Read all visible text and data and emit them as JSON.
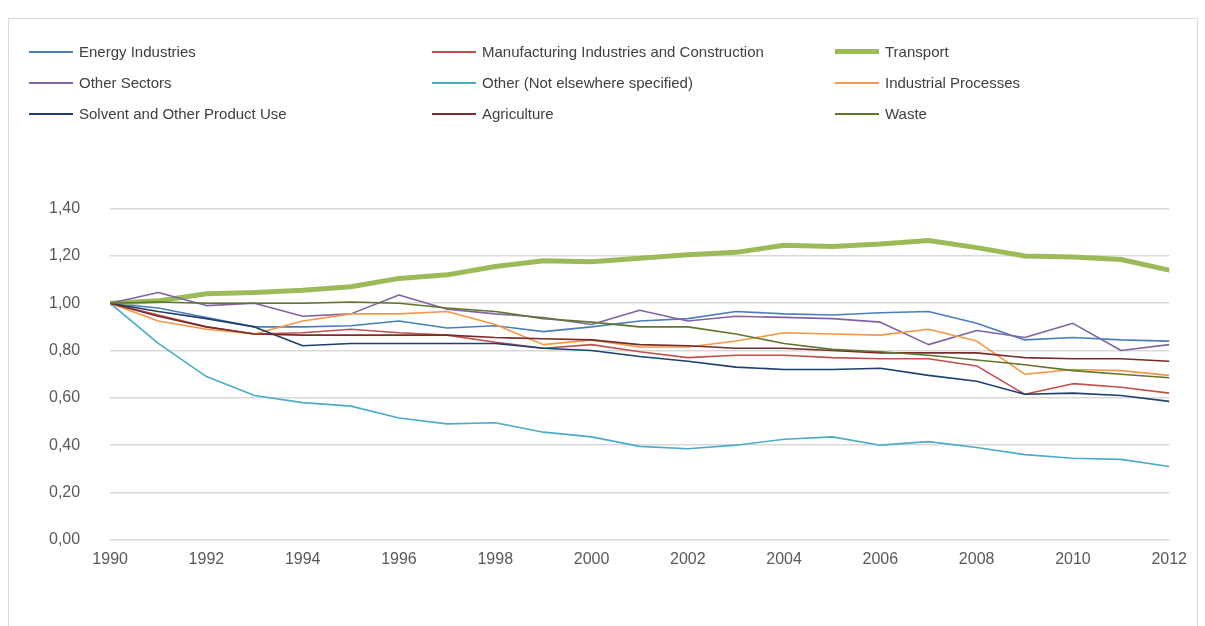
{
  "chart_data": {
    "type": "line",
    "x": [
      1990,
      1991,
      1992,
      1993,
      1994,
      1995,
      1996,
      1997,
      1998,
      1999,
      2000,
      2001,
      2002,
      2003,
      2004,
      2005,
      2006,
      2007,
      2008,
      2009,
      2010,
      2011,
      2012
    ],
    "xlim": [
      1990,
      2012
    ],
    "xticks": [
      1990,
      1992,
      1994,
      1996,
      1998,
      2000,
      2002,
      2004,
      2006,
      2008,
      2010,
      2012
    ],
    "ylim": [
      0,
      1.4
    ],
    "yticks": [
      {
        "value": 0,
        "label": "0,00"
      },
      {
        "value": 0.2,
        "label": "0,20"
      },
      {
        "value": 0.4,
        "label": "0,40"
      },
      {
        "value": 0.6,
        "label": "0,60"
      },
      {
        "value": 0.8,
        "label": "0,80"
      },
      {
        "value": 1.0,
        "label": "1,00"
      },
      {
        "value": 1.2,
        "label": "1,20"
      },
      {
        "value": 1.4,
        "label": "1,40"
      }
    ],
    "grid": "y",
    "legend": "top",
    "marker": "none",
    "line_style": "solid",
    "series": [
      {
        "name": "Energy Industries",
        "color": "#4a7ebb",
        "values": [
          1.0,
          0.98,
          0.94,
          0.9,
          0.9,
          0.905,
          0.925,
          0.895,
          0.905,
          0.88,
          0.9,
          0.925,
          0.935,
          0.965,
          0.955,
          0.95,
          0.96,
          0.965,
          0.915,
          0.845,
          0.855,
          0.845,
          0.84
        ]
      },
      {
        "name": "Manufacturing Industries and Construction",
        "color": "#c0504d",
        "values": [
          1.0,
          0.95,
          0.9,
          0.87,
          0.875,
          0.89,
          0.875,
          0.865,
          0.835,
          0.81,
          0.825,
          0.795,
          0.77,
          0.78,
          0.78,
          0.77,
          0.765,
          0.765,
          0.735,
          0.615,
          0.66,
          0.645,
          0.62
        ]
      },
      {
        "name": "Transport",
        "color": "#9bbb59",
        "values": [
          1.0,
          1.01,
          1.04,
          1.045,
          1.055,
          1.07,
          1.105,
          1.12,
          1.155,
          1.18,
          1.175,
          1.19,
          1.205,
          1.215,
          1.245,
          1.24,
          1.25,
          1.265,
          1.235,
          1.2,
          1.195,
          1.185,
          1.14
        ]
      },
      {
        "name": "Other Sectors",
        "color": "#8064a2",
        "values": [
          1.0,
          1.045,
          0.99,
          1.0,
          0.945,
          0.955,
          1.035,
          0.975,
          0.955,
          0.94,
          0.91,
          0.97,
          0.925,
          0.945,
          0.94,
          0.935,
          0.92,
          0.825,
          0.885,
          0.855,
          0.915,
          0.8,
          0.825
        ]
      },
      {
        "name": "Other (Not elsewhere specified)",
        "color": "#4bacc6",
        "values": [
          1.0,
          0.83,
          0.69,
          0.61,
          0.58,
          0.565,
          0.515,
          0.49,
          0.495,
          0.455,
          0.435,
          0.395,
          0.385,
          0.4,
          0.425,
          0.435,
          0.4,
          0.415,
          0.39,
          0.36,
          0.345,
          0.34,
          0.31
        ]
      },
      {
        "name": "Industrial Processes",
        "color": "#f79646",
        "values": [
          1.0,
          0.925,
          0.89,
          0.87,
          0.925,
          0.955,
          0.955,
          0.965,
          0.91,
          0.825,
          0.845,
          0.815,
          0.815,
          0.84,
          0.875,
          0.87,
          0.865,
          0.89,
          0.84,
          0.7,
          0.72,
          0.715,
          0.695
        ]
      },
      {
        "name": "Solvent and Other Product Use",
        "color": "#1f3f6e",
        "values": [
          1.0,
          0.965,
          0.935,
          0.9,
          0.82,
          0.83,
          0.83,
          0.83,
          0.83,
          0.81,
          0.8,
          0.775,
          0.755,
          0.73,
          0.72,
          0.72,
          0.725,
          0.695,
          0.67,
          0.615,
          0.62,
          0.61,
          0.585
        ]
      },
      {
        "name": "Agriculture",
        "color": "#772c2a",
        "values": [
          1.0,
          0.945,
          0.9,
          0.87,
          0.865,
          0.865,
          0.865,
          0.865,
          0.855,
          0.85,
          0.845,
          0.825,
          0.82,
          0.81,
          0.81,
          0.8,
          0.79,
          0.79,
          0.79,
          0.77,
          0.765,
          0.765,
          0.755
        ]
      },
      {
        "name": "Waste",
        "color": "#5f7530",
        "values": [
          1.0,
          1.005,
          1.0,
          1.0,
          1.0,
          1.005,
          1.0,
          0.98,
          0.965,
          0.935,
          0.92,
          0.9,
          0.9,
          0.87,
          0.83,
          0.805,
          0.795,
          0.78,
          0.76,
          0.74,
          0.715,
          0.7,
          0.685
        ]
      }
    ]
  }
}
